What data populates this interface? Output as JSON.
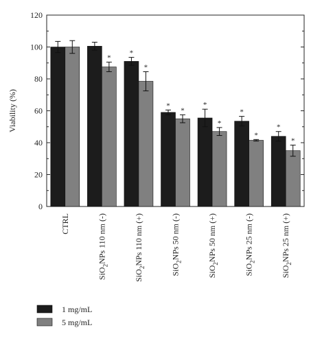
{
  "chart_data": {
    "type": "bar",
    "ylabel": "Viability (%)",
    "ylim": [
      0,
      120
    ],
    "yticks": [
      0,
      20,
      40,
      60,
      80,
      100,
      120
    ],
    "categories": [
      "CTRL",
      "SiO2NPs 110 nm (-)",
      "SiO2NPs 110 nm (+)",
      "SiO2NPs 50 nm (-)",
      "SiO2NPs 50 nm (+)",
      "SiO2NPs 25 nm (-)",
      "SiO2NPs 25 nm (+)"
    ],
    "category_labels": [
      {
        "pre": "CTRL",
        "sub": "",
        "post": ""
      },
      {
        "pre": "SiO",
        "sub": "2",
        "post": "NPs 110 nm (-)"
      },
      {
        "pre": "SiO",
        "sub": "2",
        "post": "NPs 110 nm (+)"
      },
      {
        "pre": "SiO",
        "sub": "2",
        "post": "NPs 50 nm (-)"
      },
      {
        "pre": "SiO",
        "sub": "2",
        "post": "NPs 50 nm (+)"
      },
      {
        "pre": "SiO",
        "sub": "2",
        "post": "NPs 25 nm (-)"
      },
      {
        "pre": "SiO",
        "sub": "2",
        "post": "NPs 25 nm (+)"
      }
    ],
    "series": [
      {
        "name": "1 mg/mL",
        "color": "#1c1c1c",
        "values": [
          100,
          100.5,
          91,
          59,
          55.5,
          53.5,
          44
        ],
        "errors": [
          3.5,
          2.5,
          2.5,
          1.5,
          5.5,
          3,
          3
        ],
        "significant": [
          false,
          false,
          true,
          true,
          true,
          true,
          true
        ]
      },
      {
        "name": "5 mg/mL",
        "color": "#808080",
        "values": [
          100,
          87.5,
          78.5,
          55,
          47,
          41.5,
          35
        ],
        "errors": [
          4,
          3,
          6,
          2.5,
          2.5,
          0.5,
          3.5
        ],
        "significant": [
          false,
          true,
          true,
          true,
          true,
          true,
          true
        ]
      }
    ],
    "significance_marker": "*",
    "legend_position": "bottom-left"
  }
}
